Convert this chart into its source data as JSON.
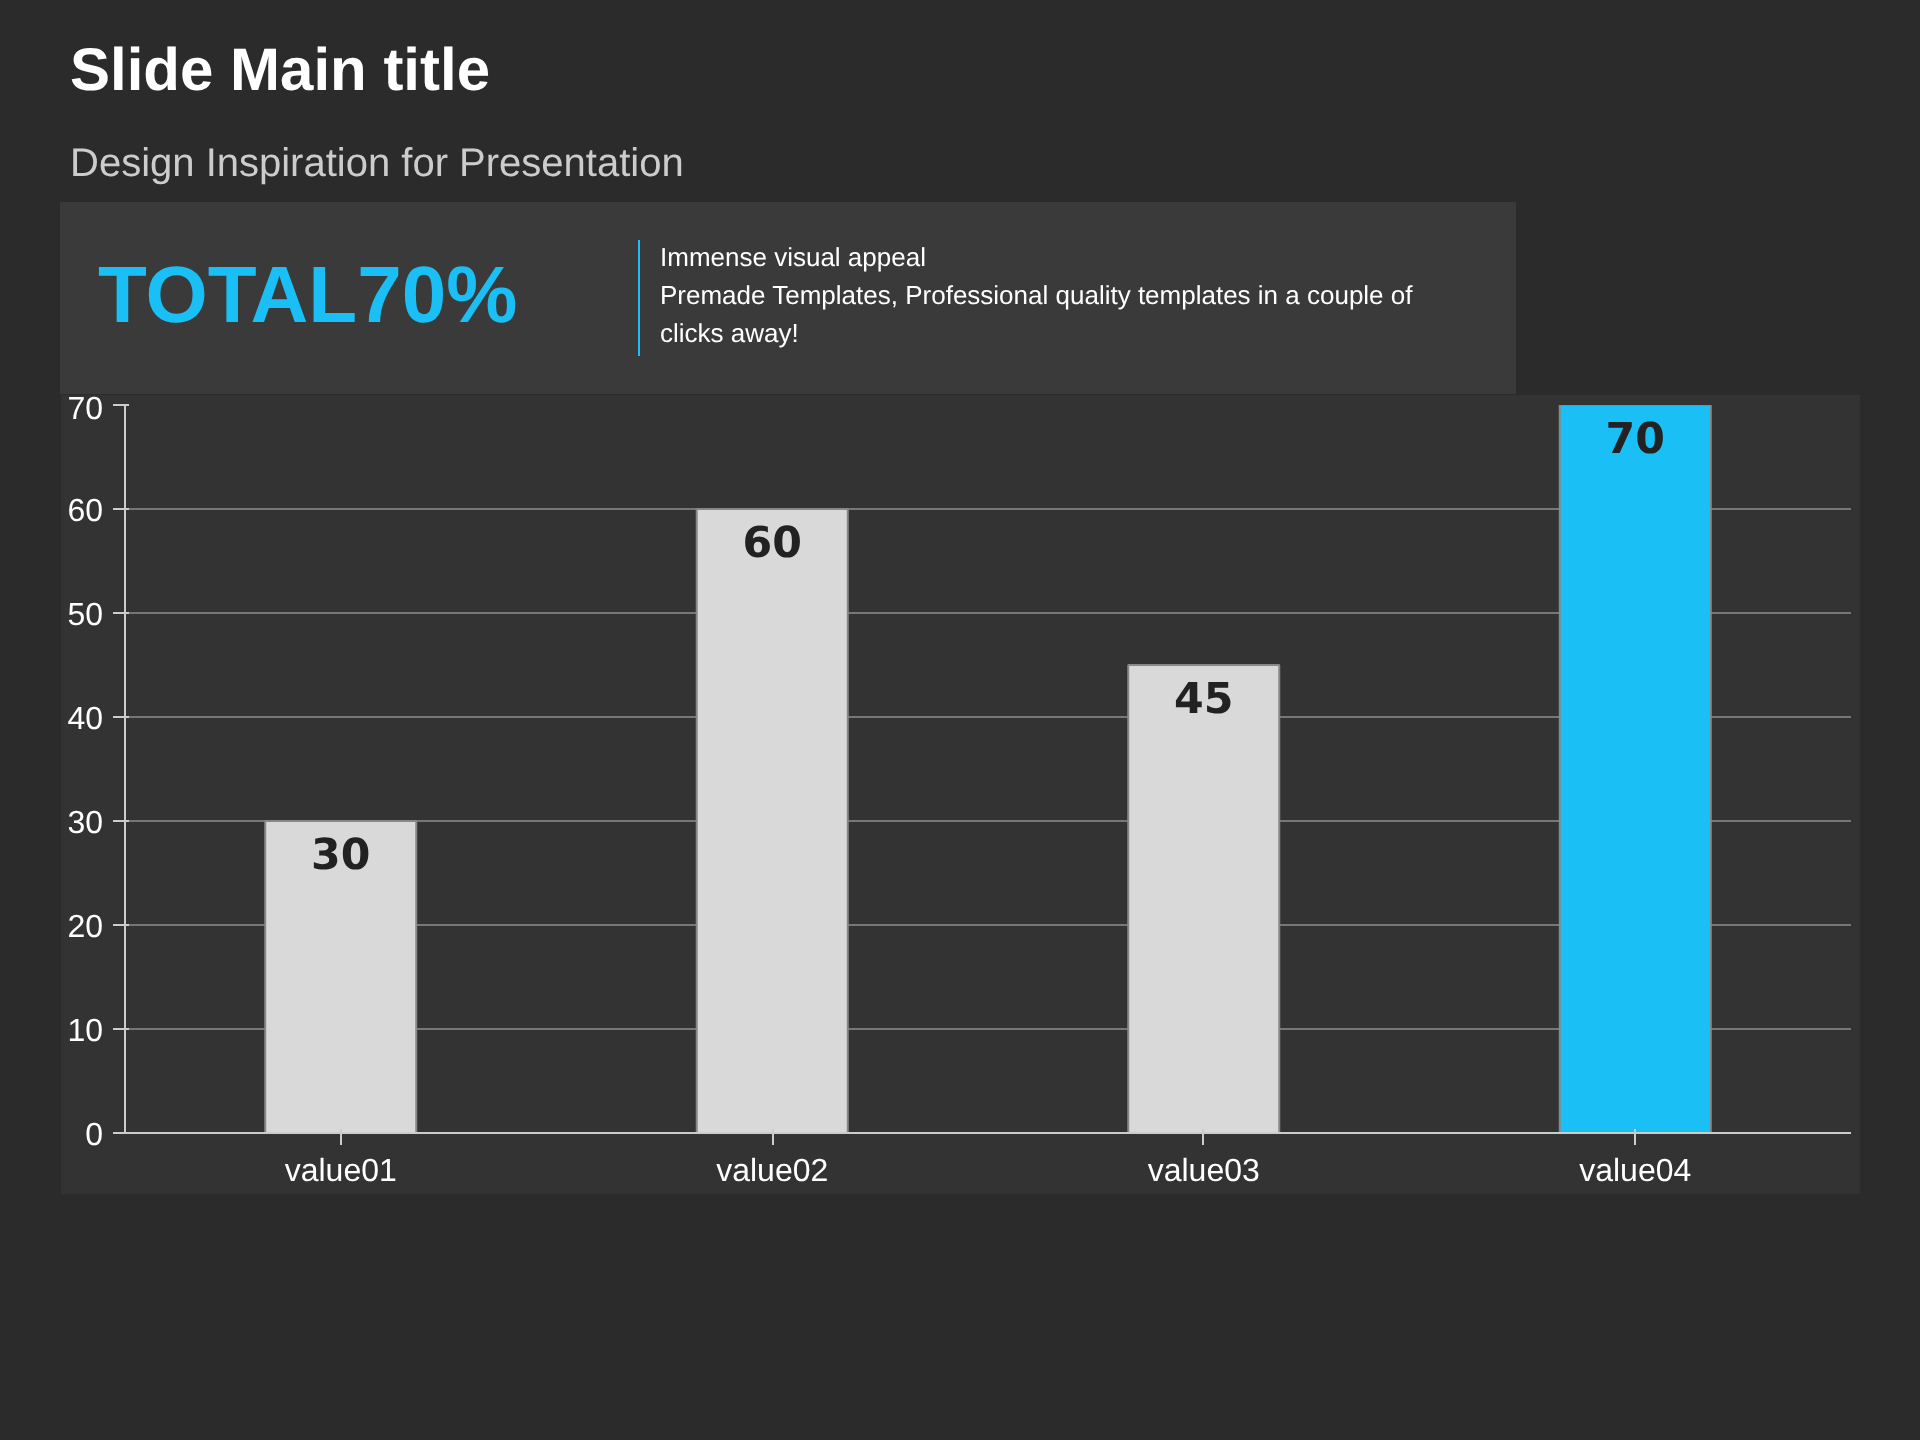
{
  "chart_data": {
    "type": "bar",
    "title": "Slide Main title",
    "subtitle": "Design Inspiration for Presentation",
    "annotations": [
      "TOTAL70%",
      "Immense visual appeal",
      "Premade Templates, Professional quality templates in a couple of clicks away!"
    ],
    "categories": [
      "value01",
      "value02",
      "value03",
      "value04"
    ],
    "values": [
      30,
      60,
      45,
      70
    ],
    "colors": [
      "#d9d9d9",
      "#d9d9d9",
      "#d9d9d9",
      "#1ac0f5"
    ],
    "ylim": [
      0,
      70
    ],
    "yticks": [
      0,
      10,
      20,
      30,
      40,
      50,
      60,
      70
    ],
    "grid": "y",
    "data_labels": true
  }
}
